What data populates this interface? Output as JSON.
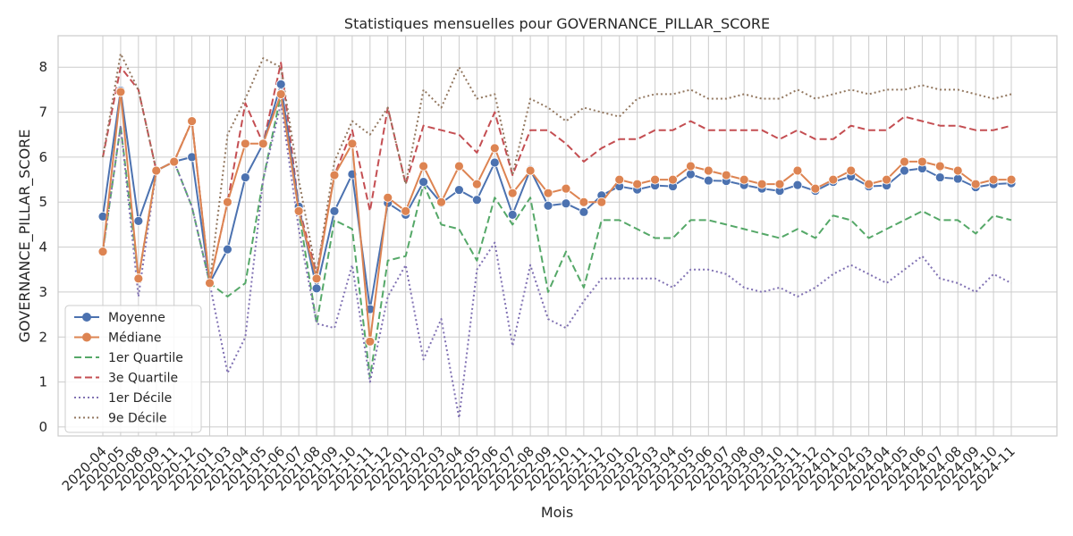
{
  "chart_data": {
    "type": "line",
    "title": "Statistiques mensuelles pour GOVERNANCE_PILLAR_SCORE",
    "xlabel": "Mois",
    "ylabel": "GOVERNANCE_PILLAR_SCORE",
    "ylim": [
      -0.2,
      8.7
    ],
    "yticks": [
      0,
      1,
      2,
      3,
      4,
      5,
      6,
      7,
      8
    ],
    "grid": true,
    "legend_position": "lower-left",
    "categories": [
      "2020-04",
      "2020-05",
      "2020-08",
      "2020-09",
      "2020-11",
      "2020-12",
      "2021-01",
      "2021-03",
      "2021-04",
      "2021-05",
      "2021-06",
      "2021-07",
      "2021-08",
      "2021-09",
      "2021-10",
      "2021-11",
      "2021-12",
      "2022-01",
      "2022-02",
      "2022-03",
      "2022-04",
      "2022-05",
      "2022-06",
      "2022-07",
      "2022-08",
      "2022-09",
      "2022-10",
      "2022-11",
      "2022-12",
      "2023-01",
      "2023-02",
      "2023-03",
      "2023-04",
      "2023-05",
      "2023-06",
      "2023-07",
      "2023-08",
      "2023-09",
      "2023-10",
      "2023-11",
      "2023-12",
      "2024-01",
      "2024-02",
      "2024-03",
      "2024-04",
      "2024-05",
      "2024-06",
      "2024-07",
      "2024-08",
      "2024-09",
      "2024-10",
      "2024-11"
    ],
    "series": [
      {
        "name": "Moyenne",
        "style": "solid-marker",
        "color": "#4c72b0",
        "values": [
          4.68,
          7.48,
          4.58,
          5.7,
          5.9,
          6.0,
          3.2,
          3.95,
          5.55,
          6.3,
          7.62,
          4.9,
          3.08,
          4.8,
          5.62,
          2.62,
          4.98,
          4.72,
          5.45,
          4.98,
          5.27,
          5.05,
          5.88,
          4.72,
          5.72,
          4.92,
          4.97,
          4.78,
          5.15,
          5.35,
          5.28,
          5.37,
          5.35,
          5.62,
          5.48,
          5.47,
          5.38,
          5.3,
          5.25,
          5.38,
          5.25,
          5.45,
          5.57,
          5.35,
          5.37,
          5.7,
          5.75,
          5.55,
          5.52,
          5.33,
          5.4,
          5.42
        ]
      },
      {
        "name": "Médiane",
        "style": "solid-marker",
        "color": "#dd8452",
        "values": [
          3.9,
          7.45,
          3.3,
          5.7,
          5.9,
          6.8,
          3.2,
          5.0,
          6.3,
          6.3,
          7.4,
          4.8,
          3.3,
          5.6,
          6.3,
          1.9,
          5.1,
          4.8,
          5.8,
          5.0,
          5.8,
          5.4,
          6.2,
          5.2,
          5.7,
          5.2,
          5.3,
          5.0,
          5.0,
          5.5,
          5.4,
          5.5,
          5.5,
          5.8,
          5.7,
          5.6,
          5.5,
          5.4,
          5.4,
          5.7,
          5.3,
          5.5,
          5.7,
          5.4,
          5.5,
          5.9,
          5.9,
          5.8,
          5.7,
          5.4,
          5.5,
          5.5
        ]
      },
      {
        "name": "1er Quartile",
        "style": "dashed",
        "color": "#55a868",
        "values": [
          3.9,
          6.7,
          3.3,
          5.7,
          5.9,
          4.9,
          3.2,
          2.9,
          3.2,
          5.5,
          7.4,
          4.8,
          2.3,
          4.6,
          4.4,
          1.1,
          3.7,
          3.8,
          5.4,
          4.5,
          4.4,
          3.7,
          5.1,
          4.5,
          5.1,
          3.0,
          3.9,
          3.1,
          4.6,
          4.6,
          4.4,
          4.2,
          4.2,
          4.6,
          4.6,
          4.5,
          4.4,
          4.3,
          4.2,
          4.4,
          4.2,
          4.7,
          4.6,
          4.2,
          4.4,
          4.6,
          4.8,
          4.6,
          4.6,
          4.3,
          4.7,
          4.6
        ]
      },
      {
        "name": "3e Quartile",
        "style": "dashed",
        "color": "#c44e52",
        "values": [
          6.0,
          8.0,
          7.5,
          5.7,
          5.9,
          6.8,
          3.2,
          5.0,
          7.2,
          6.3,
          8.1,
          4.9,
          3.4,
          5.6,
          6.6,
          4.8,
          7.1,
          5.4,
          6.7,
          6.6,
          6.5,
          6.1,
          7.0,
          5.6,
          6.6,
          6.6,
          6.3,
          5.9,
          6.2,
          6.4,
          6.4,
          6.6,
          6.6,
          6.8,
          6.6,
          6.6,
          6.6,
          6.6,
          6.4,
          6.6,
          6.4,
          6.4,
          6.7,
          6.6,
          6.6,
          6.9,
          6.8,
          6.7,
          6.7,
          6.6,
          6.6,
          6.7
        ]
      },
      {
        "name": "1er Décile",
        "style": "dotted",
        "color": "#8172b3",
        "values": [
          3.9,
          6.7,
          2.9,
          5.7,
          5.9,
          4.9,
          3.2,
          1.2,
          2.0,
          5.5,
          7.2,
          4.4,
          2.3,
          2.2,
          3.6,
          1.0,
          2.9,
          3.6,
          1.5,
          2.4,
          0.2,
          3.5,
          4.1,
          1.8,
          3.6,
          2.4,
          2.2,
          2.8,
          3.3,
          3.3,
          3.3,
          3.3,
          3.1,
          3.5,
          3.5,
          3.4,
          3.1,
          3.0,
          3.1,
          2.9,
          3.1,
          3.4,
          3.6,
          3.4,
          3.2,
          3.5,
          3.8,
          3.3,
          3.2,
          3.0,
          3.4,
          3.2
        ]
      },
      {
        "name": "9e Décile",
        "style": "dotted",
        "color": "#937860",
        "values": [
          6.0,
          8.3,
          7.5,
          5.7,
          5.9,
          6.8,
          3.2,
          6.5,
          7.3,
          8.2,
          8.0,
          5.5,
          3.4,
          5.9,
          6.8,
          6.5,
          7.1,
          5.4,
          7.5,
          7.1,
          8.0,
          7.3,
          7.4,
          5.6,
          7.3,
          7.1,
          6.8,
          7.1,
          7.0,
          6.9,
          7.3,
          7.4,
          7.4,
          7.5,
          7.3,
          7.3,
          7.4,
          7.3,
          7.3,
          7.5,
          7.3,
          7.4,
          7.5,
          7.4,
          7.5,
          7.5,
          7.6,
          7.5,
          7.5,
          7.4,
          7.3,
          7.4
        ]
      }
    ]
  }
}
